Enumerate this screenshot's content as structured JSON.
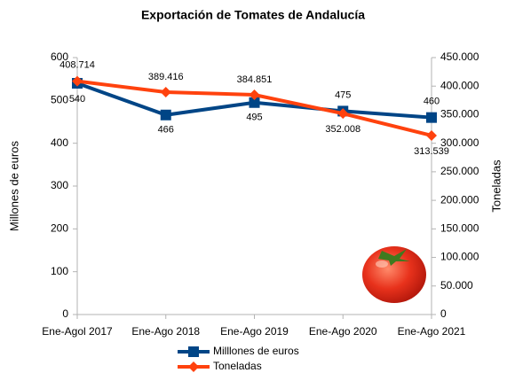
{
  "chart_data": {
    "type": "line",
    "title": "Exportación de Tomates de Andalucía",
    "y_label": "Millones de euros",
    "y2_label": "Toneladas",
    "categories": [
      "Ene-Agol 2017",
      "Ene-Ago 2018",
      "Ene-Ago 2019",
      "Ene-Ago 2020",
      "Ene-Ago 2021"
    ],
    "series": [
      {
        "name": "Milllones de euros",
        "color": "#004586",
        "marker": "square",
        "values": [
          540,
          466,
          495,
          475,
          460
        ]
      },
      {
        "name": "Toneladas",
        "color": "#ff420e",
        "marker": "diamond",
        "axis": "y2",
        "values": [
          408714,
          389416,
          384851,
          352008,
          313539
        ],
        "value_labels": [
          "408.714",
          "389.416",
          "384.851",
          "352.008",
          "313.539"
        ]
      }
    ],
    "ylim": [
      0,
      600
    ],
    "yticks": [
      0,
      100,
      200,
      300,
      400,
      500,
      600
    ],
    "y2lim": [
      0,
      450000
    ],
    "y2ticks": [
      0,
      {
        "value": 50000,
        "label": "50.000"
      },
      {
        "value": 100000,
        "label": "100.000"
      },
      {
        "value": 150000,
        "label": "150.000"
      },
      {
        "value": 200000,
        "label": "200.000"
      },
      {
        "value": 250000,
        "label": "250.000"
      },
      {
        "value": 300000,
        "label": "300.000"
      },
      {
        "value": 350000,
        "label": "350.000"
      },
      {
        "value": 400000,
        "label": "400.000"
      },
      {
        "value": 450000,
        "label": "450.000"
      }
    ],
    "grid": false,
    "legend": "bottom"
  }
}
